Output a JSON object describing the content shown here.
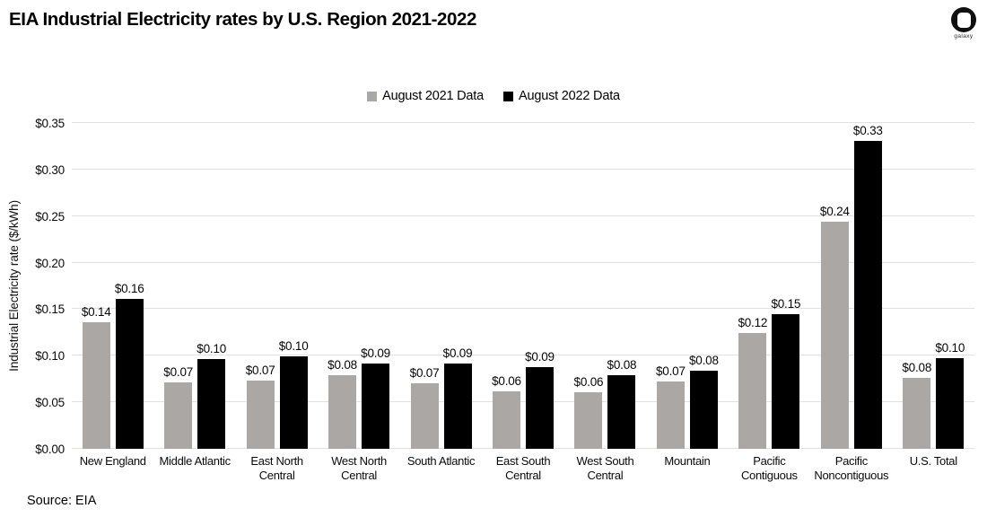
{
  "header": {
    "title": "EIA Industrial Electricity rates by U.S. Region 2021-2022",
    "logo_text": "galaxy"
  },
  "source": "Source: EIA",
  "colors": {
    "series_2021": "#aba7a4",
    "series_2022": "#000000",
    "gridline": "#e3e1df"
  },
  "chart_data": {
    "type": "bar",
    "title": "EIA Industrial Electricity rates by U.S. Region 2021-2022",
    "xlabel": "",
    "ylabel": "Industrial Electricity rate ($/kWh)",
    "ylim": [
      0,
      0.35
    ],
    "ytick_step": 0.05,
    "ytick_labels": [
      "$0.00",
      "$0.05",
      "$0.10",
      "$0.15",
      "$0.20",
      "$0.25",
      "$0.30",
      "$0.35"
    ],
    "grid": true,
    "legend_position": "top-center",
    "categories": [
      "New England",
      "Middle Atlantic",
      "East North Central",
      "West North Central",
      "South Atlantic",
      "East South Central",
      "West South Central",
      "Mountain",
      "Pacific Contiguous",
      "Pacific Noncontiguous",
      "U.S. Total"
    ],
    "series": [
      {
        "name": "August 2021 Data",
        "color": "#aba7a4",
        "values": [
          0.136,
          0.071,
          0.073,
          0.079,
          0.07,
          0.062,
          0.061,
          0.072,
          0.124,
          0.244,
          0.076
        ],
        "labels": [
          "$0.14",
          "$0.07",
          "$0.07",
          "$0.08",
          "$0.07",
          "$0.06",
          "$0.06",
          "$0.07",
          "$0.12",
          "$0.24",
          "$0.08"
        ]
      },
      {
        "name": "August 2022 Data",
        "color": "#000000",
        "values": [
          0.161,
          0.096,
          0.099,
          0.092,
          0.092,
          0.088,
          0.079,
          0.084,
          0.145,
          0.331,
          0.097
        ],
        "labels": [
          "$0.16",
          "$0.10",
          "$0.10",
          "$0.09",
          "$0.09",
          "$0.09",
          "$0.08",
          "$0.08",
          "$0.15",
          "$0.33",
          "$0.10"
        ]
      }
    ]
  }
}
